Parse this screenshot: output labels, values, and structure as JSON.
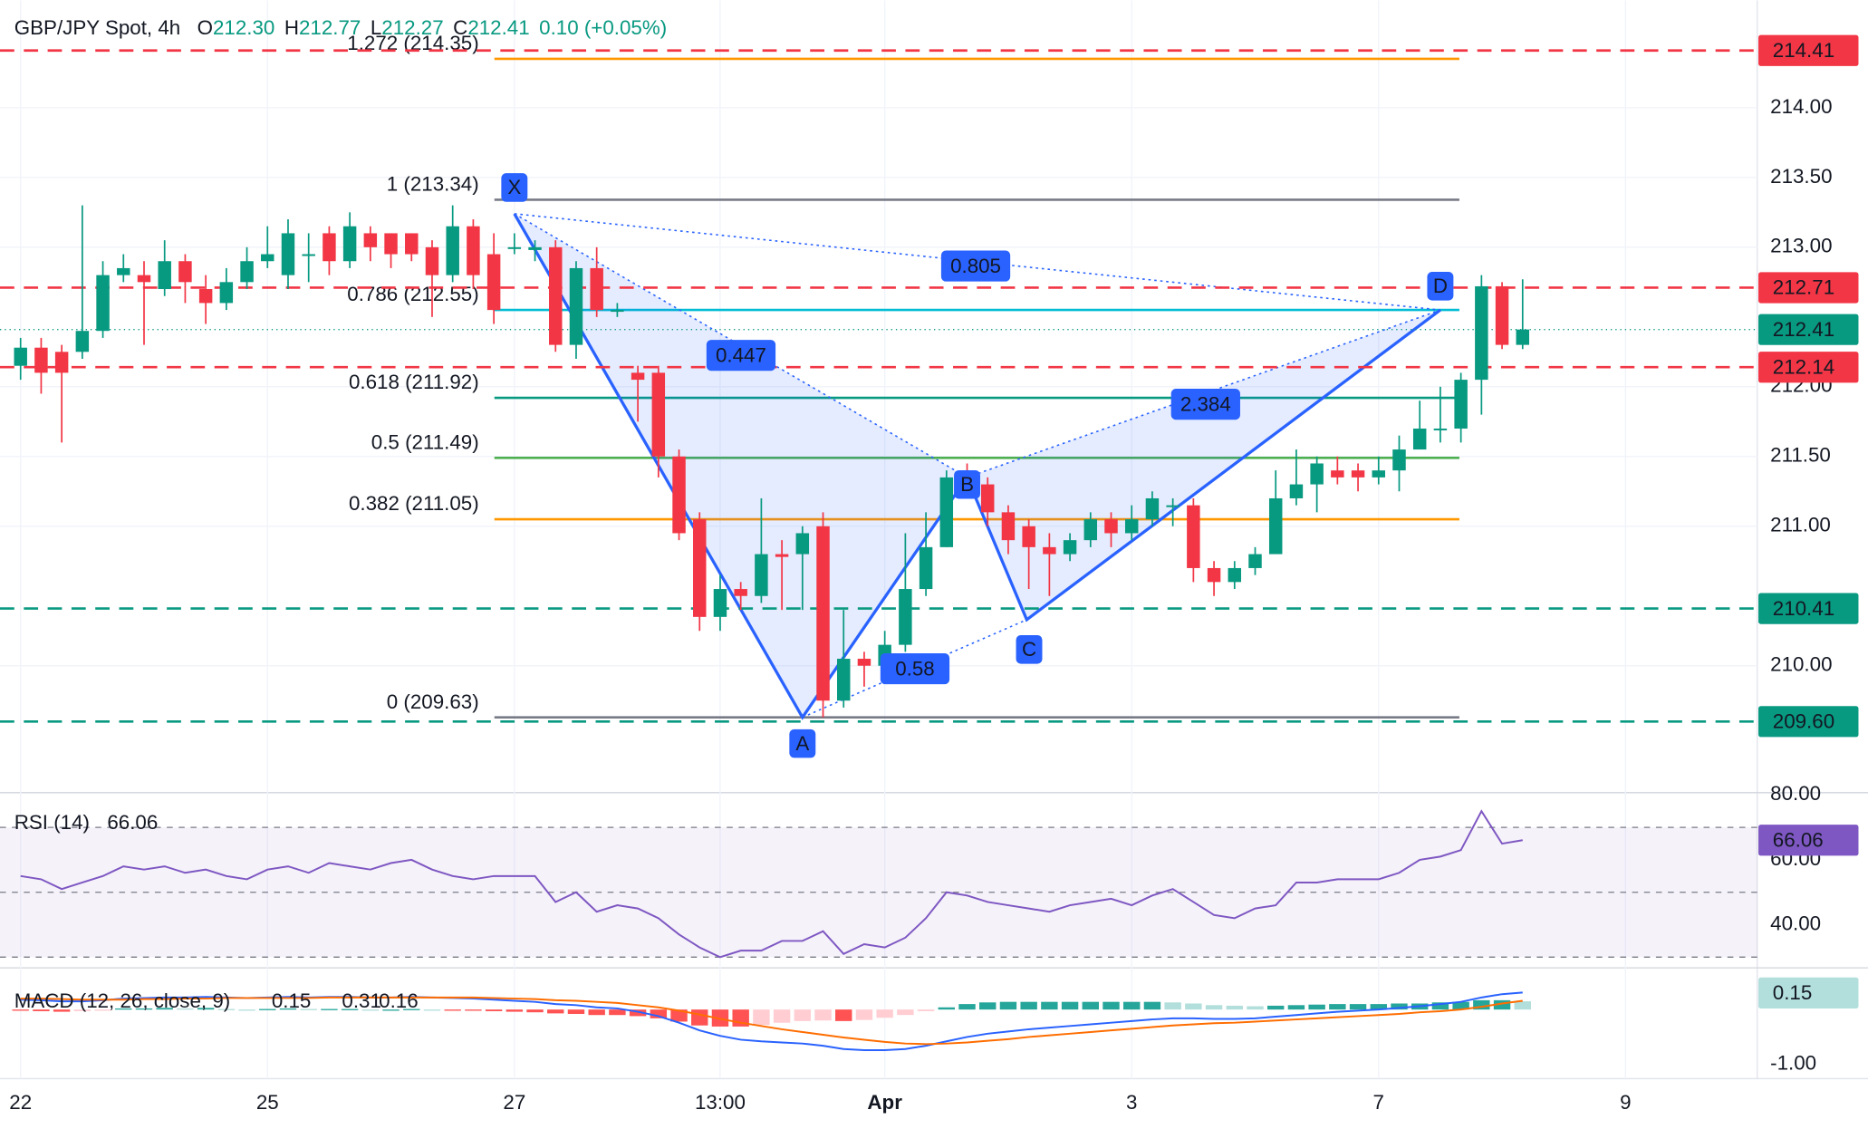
{
  "header": {
    "symbol": "GBP/JPY Spot, 4h",
    "ohlc": [
      {
        "label": "O",
        "value": "212.30"
      },
      {
        "label": "H",
        "value": "212.77"
      },
      {
        "label": "L",
        "value": "212.27"
      },
      {
        "label": "C",
        "value": "212.41"
      }
    ],
    "change": "0.10 (+0.05%)"
  },
  "chart_data": [
    {
      "type": "candlestick",
      "up_color": "#089981",
      "down_color": "#f23645",
      "xlim": [
        -1,
        84.4
      ],
      "xticks": [
        {
          "value": 0,
          "label": "22"
        },
        {
          "value": 12,
          "label": "25"
        },
        {
          "value": 24,
          "label": "27"
        },
        {
          "value": 34,
          "label": "13:00"
        },
        {
          "value": 42,
          "label": "Apr"
        },
        {
          "value": 54,
          "label": "3"
        },
        {
          "value": 66,
          "label": "7"
        },
        {
          "value": 78,
          "label": "9"
        }
      ],
      "ylim": [
        209.09,
        214.77
      ],
      "yticks": [
        {
          "value": 214,
          "label": "214.00"
        },
        {
          "value": 213.5,
          "label": "213.50"
        },
        {
          "value": 213,
          "label": "213.00"
        },
        {
          "value": 212,
          "label": "212.00"
        },
        {
          "value": 211.5,
          "label": "211.50"
        },
        {
          "value": 211,
          "label": "211.00"
        },
        {
          "value": 210,
          "label": "210.00"
        }
      ],
      "grid": true,
      "open": [
        212.15,
        212.28,
        212.25,
        212.25,
        212.4,
        212.8,
        212.8,
        212.7,
        212.9,
        212.7,
        212.6,
        212.75,
        212.9,
        212.8,
        212.95,
        213.1,
        212.9,
        213.1,
        213.1,
        213.1,
        213.0,
        212.8,
        213.15,
        212.95,
        213.0,
        212.98,
        213.0,
        212.3,
        212.85,
        212.55,
        212.1,
        212.1,
        211.5,
        211.05,
        210.35,
        210.55,
        210.5,
        210.8,
        210.8,
        211.0,
        209.75,
        210.05,
        210.0,
        210.15,
        210.55,
        210.85,
        211.35,
        211.3,
        211.1,
        211.0,
        210.85,
        210.8,
        210.9,
        211.05,
        210.95,
        211.05,
        211.15,
        211.15,
        210.7,
        210.6,
        210.7,
        210.8,
        211.2,
        211.3,
        211.4,
        211.4,
        211.35,
        211.4,
        211.55,
        211.7,
        211.7,
        212.05,
        212.72,
        212.3
      ],
      "high": [
        212.35,
        212.35,
        212.3,
        213.3,
        212.9,
        212.95,
        212.9,
        213.05,
        212.95,
        212.8,
        212.85,
        213.0,
        213.15,
        213.2,
        213.1,
        213.15,
        213.25,
        213.15,
        213.1,
        213.1,
        213.05,
        213.3,
        213.2,
        213.1,
        213.1,
        213.05,
        213.05,
        212.9,
        213.0,
        212.6,
        212.15,
        212.15,
        211.55,
        211.1,
        210.65,
        210.6,
        211.2,
        210.9,
        211.0,
        211.1,
        210.4,
        210.1,
        210.25,
        210.95,
        211.1,
        211.4,
        211.45,
        211.35,
        211.15,
        211.05,
        210.95,
        210.95,
        211.1,
        211.1,
        211.15,
        211.25,
        211.2,
        211.2,
        210.75,
        210.75,
        210.85,
        211.4,
        211.55,
        211.5,
        211.5,
        211.45,
        211.5,
        211.65,
        211.9,
        212.0,
        212.1,
        212.8,
        212.75,
        212.77
      ],
      "low": [
        212.05,
        211.95,
        211.6,
        212.2,
        212.35,
        212.75,
        212.3,
        212.65,
        212.6,
        212.45,
        212.55,
        212.7,
        212.85,
        212.7,
        212.75,
        212.8,
        212.85,
        212.9,
        212.85,
        212.9,
        212.5,
        212.75,
        212.7,
        212.45,
        212.95,
        212.9,
        212.25,
        212.2,
        212.5,
        212.5,
        211.75,
        211.35,
        210.9,
        210.25,
        210.25,
        210.4,
        210.45,
        210.4,
        210.4,
        209.63,
        209.7,
        209.85,
        209.95,
        210.1,
        210.5,
        210.85,
        211.2,
        211.0,
        210.8,
        210.55,
        210.5,
        210.75,
        210.85,
        210.85,
        210.9,
        211.0,
        211.0,
        210.6,
        210.5,
        210.55,
        210.65,
        210.8,
        211.15,
        211.1,
        211.3,
        211.25,
        211.3,
        211.25,
        211.6,
        211.6,
        211.6,
        211.8,
        212.27,
        212.27
      ],
      "close": [
        212.28,
        212.1,
        212.1,
        212.4,
        212.8,
        212.85,
        212.75,
        212.9,
        212.75,
        212.6,
        212.75,
        212.9,
        212.95,
        213.1,
        212.95,
        212.9,
        213.15,
        213.0,
        212.95,
        212.95,
        212.8,
        213.15,
        212.8,
        212.55,
        213.0,
        213.0,
        212.3,
        212.85,
        212.55,
        212.55,
        212.05,
        211.5,
        210.95,
        210.35,
        210.55,
        210.5,
        210.8,
        210.78,
        210.95,
        209.75,
        210.05,
        210.0,
        210.15,
        210.55,
        210.85,
        211.35,
        211.25,
        211.1,
        210.9,
        210.85,
        210.8,
        210.9,
        211.05,
        210.95,
        211.05,
        211.2,
        211.15,
        210.7,
        210.6,
        210.7,
        210.8,
        211.2,
        211.3,
        211.45,
        211.35,
        211.35,
        211.4,
        211.55,
        211.7,
        211.7,
        212.05,
        212.72,
        212.3,
        212.41
      ],
      "last_color": "#089981",
      "price_lines": [
        {
          "value": 214.41,
          "label": "214.41",
          "color": "#f23645"
        },
        {
          "value": 212.71,
          "label": "212.71",
          "color": "#f23645"
        },
        {
          "value": 212.14,
          "label": "212.14",
          "color": "#f23645"
        },
        {
          "value": 210.41,
          "label": "210.41",
          "color": "#089981"
        },
        {
          "value": 209.6,
          "label": "209.60",
          "color": "#089981"
        }
      ],
      "fib_levels": [
        {
          "value": 214.35,
          "label": "1.272 (214.35)",
          "color": "#ff9800"
        },
        {
          "value": 213.34,
          "label": "1 (213.34)",
          "color": "#787b86"
        },
        {
          "value": 212.55,
          "label": "0.786 (212.55)",
          "color": "#00bcd4"
        },
        {
          "value": 211.92,
          "label": "0.618 (211.92)",
          "color": "#089981"
        },
        {
          "value": 211.49,
          "label": "0.5 (211.49)",
          "color": "#4caf50"
        },
        {
          "value": 211.05,
          "label": "0.382 (211.05)",
          "color": "#ff9800"
        },
        {
          "value": 209.63,
          "label": "0 (209.63)",
          "color": "#787b86"
        }
      ],
      "pattern": {
        "color": "#2962ff",
        "points": [
          {
            "label": "X",
            "x": 24,
            "y": 213.24
          },
          {
            "label": "A",
            "x": 38,
            "y": 209.63
          },
          {
            "label": "B",
            "x": 46,
            "y": 211.35
          },
          {
            "label": "C",
            "x": 48.9,
            "y": 210.33
          },
          {
            "label": "D",
            "x": 69,
            "y": 212.55
          }
        ],
        "ratios": [
          0.447,
          0.58,
          2.384,
          0.805
        ]
      }
    },
    {
      "type": "line",
      "title": "RSI (14)",
      "color": "#7e57c2",
      "ylim": [
        26.7,
        80.7
      ],
      "yticks": [
        {
          "value": 80,
          "label": "80.00"
        },
        {
          "value": 60,
          "label": "60.00"
        },
        {
          "value": 40,
          "label": "40.00"
        }
      ],
      "bands": [
        70,
        50,
        30
      ],
      "values": [
        55,
        54,
        51,
        53,
        55,
        58,
        57,
        58,
        56,
        57,
        55,
        54,
        57,
        58,
        56,
        59,
        58,
        57,
        59,
        60,
        57,
        55,
        54,
        55,
        55,
        55,
        47,
        50,
        44,
        46,
        45,
        42,
        37,
        33,
        30,
        32,
        32,
        35,
        35,
        38,
        31,
        34,
        33,
        36,
        42,
        50,
        49,
        47,
        46,
        45,
        44,
        46,
        47,
        48,
        46,
        49,
        51,
        47,
        43,
        42,
        45,
        46,
        53,
        53,
        54,
        54,
        54,
        56,
        60,
        61,
        63,
        75,
        65,
        66.06
      ]
    },
    {
      "type": "macd",
      "title": "MACD (12, 26, close, 9)",
      "ylim": [
        -1.26,
        0.76
      ],
      "yticks": [
        {
          "value": -1,
          "label": "-1.00"
        }
      ],
      "hist_colors": [
        "#26a69a",
        "#b2dfdb",
        "#ff5252",
        "#ffcdd2"
      ],
      "series": [
        {
          "name": "Histogram",
          "color": "#b2dfdb",
          "values": [
            -0.02,
            -0.03,
            -0.04,
            -0.03,
            -0.01,
            0.02,
            0.02,
            0.03,
            0.02,
            0.03,
            0.01,
            0,
            0.01,
            0.02,
            0.01,
            0.01,
            0.01,
            0,
            0,
            0.01,
            0,
            -0.01,
            -0.02,
            -0.03,
            -0.04,
            -0.05,
            -0.07,
            -0.08,
            -0.1,
            -0.1,
            -0.12,
            -0.16,
            -0.22,
            -0.29,
            -0.31,
            -0.31,
            -0.28,
            -0.24,
            -0.21,
            -0.2,
            -0.21,
            -0.19,
            -0.15,
            -0.1,
            -0.03,
            0.04,
            0.1,
            0.13,
            0.14,
            0.14,
            0.14,
            0.14,
            0.14,
            0.14,
            0.14,
            0.14,
            0.13,
            0.11,
            0.08,
            0.07,
            0.06,
            0.07,
            0.08,
            0.09,
            0.1,
            0.1,
            0.1,
            0.11,
            0.11,
            0.13,
            0.14,
            0.17,
            0.17,
            0.15
          ]
        },
        {
          "name": "MACD",
          "color": "#2962ff",
          "values": [
            0.18,
            0.17,
            0.15,
            0.15,
            0.17,
            0.2,
            0.21,
            0.22,
            0.22,
            0.23,
            0.22,
            0.21,
            0.22,
            0.23,
            0.22,
            0.23,
            0.23,
            0.22,
            0.22,
            0.23,
            0.22,
            0.21,
            0.2,
            0.18,
            0.16,
            0.14,
            0.1,
            0.08,
            0.04,
            0.02,
            -0.04,
            -0.12,
            -0.24,
            -0.38,
            -0.48,
            -0.55,
            -0.58,
            -0.6,
            -0.62,
            -0.66,
            -0.72,
            -0.74,
            -0.74,
            -0.72,
            -0.66,
            -0.58,
            -0.5,
            -0.44,
            -0.4,
            -0.36,
            -0.33,
            -0.3,
            -0.27,
            -0.24,
            -0.21,
            -0.18,
            -0.16,
            -0.16,
            -0.17,
            -0.17,
            -0.16,
            -0.13,
            -0.1,
            -0.07,
            -0.04,
            -0.02,
            0.0,
            0.03,
            0.06,
            0.1,
            0.14,
            0.22,
            0.28,
            0.31
          ]
        },
        {
          "name": "Signal",
          "color": "#ff6d00",
          "values": [
            0.2,
            0.2,
            0.19,
            0.18,
            0.18,
            0.18,
            0.19,
            0.19,
            0.2,
            0.2,
            0.21,
            0.21,
            0.21,
            0.21,
            0.21,
            0.22,
            0.22,
            0.22,
            0.22,
            0.22,
            0.22,
            0.22,
            0.22,
            0.21,
            0.2,
            0.19,
            0.17,
            0.16,
            0.14,
            0.12,
            0.08,
            0.04,
            -0.02,
            -0.09,
            -0.17,
            -0.24,
            -0.3,
            -0.36,
            -0.41,
            -0.46,
            -0.51,
            -0.55,
            -0.59,
            -0.62,
            -0.63,
            -0.62,
            -0.6,
            -0.57,
            -0.54,
            -0.5,
            -0.47,
            -0.44,
            -0.41,
            -0.38,
            -0.35,
            -0.32,
            -0.29,
            -0.27,
            -0.25,
            -0.24,
            -0.22,
            -0.2,
            -0.18,
            -0.16,
            -0.14,
            -0.12,
            -0.1,
            -0.08,
            -0.05,
            -0.03,
            0.0,
            0.05,
            0.11,
            0.16
          ]
        }
      ]
    }
  ]
}
